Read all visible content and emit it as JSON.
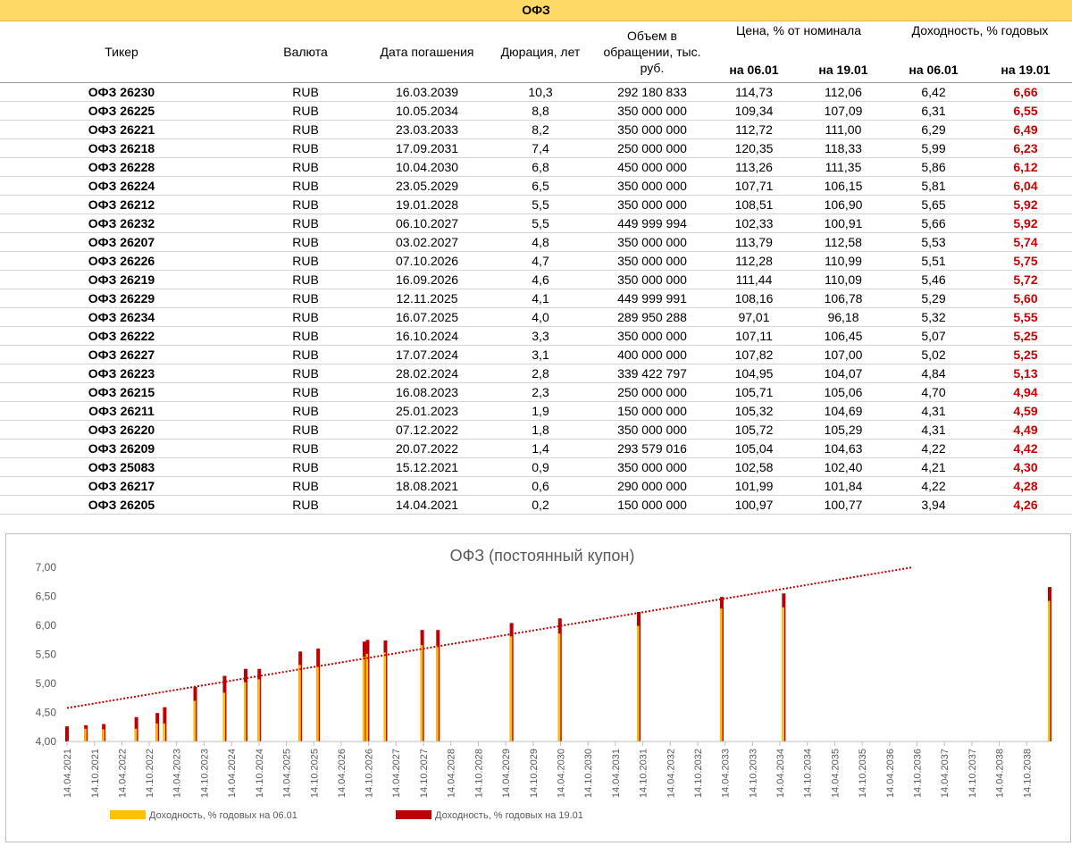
{
  "table": {
    "title": "ОФЗ",
    "headers": {
      "ticker": "Тикер",
      "currency": "Валюта",
      "maturity": "Дата погашения",
      "duration": "Дюрация, лет",
      "volume": "Объем в обращении, тыс. руб.",
      "price_group": "Цена, % от номинала",
      "yield_group": "Доходность, % годовых",
      "date1": "на 06.01",
      "date2": "на 19.01"
    },
    "rows": [
      [
        "ОФЗ 26230",
        "RUB",
        "16.03.2039",
        "10,3",
        "292 180 833",
        "114,73",
        "112,06",
        "6,42",
        "6,66"
      ],
      [
        "ОФЗ 26225",
        "RUB",
        "10.05.2034",
        "8,8",
        "350 000 000",
        "109,34",
        "107,09",
        "6,31",
        "6,55"
      ],
      [
        "ОФЗ 26221",
        "RUB",
        "23.03.2033",
        "8,2",
        "350 000 000",
        "112,72",
        "111,00",
        "6,29",
        "6,49"
      ],
      [
        "ОФЗ 26218",
        "RUB",
        "17.09.2031",
        "7,4",
        "250 000 000",
        "120,35",
        "118,33",
        "5,99",
        "6,23"
      ],
      [
        "ОФЗ 26228",
        "RUB",
        "10.04.2030",
        "6,8",
        "450 000 000",
        "113,26",
        "111,35",
        "5,86",
        "6,12"
      ],
      [
        "ОФЗ 26224",
        "RUB",
        "23.05.2029",
        "6,5",
        "350 000 000",
        "107,71",
        "106,15",
        "5,81",
        "6,04"
      ],
      [
        "ОФЗ 26212",
        "RUB",
        "19.01.2028",
        "5,5",
        "350 000 000",
        "108,51",
        "106,90",
        "5,65",
        "5,92"
      ],
      [
        "ОФЗ 26232",
        "RUB",
        "06.10.2027",
        "5,5",
        "449 999 994",
        "102,33",
        "100,91",
        "5,66",
        "5,92"
      ],
      [
        "ОФЗ 26207",
        "RUB",
        "03.02.2027",
        "4,8",
        "350 000 000",
        "113,79",
        "112,58",
        "5,53",
        "5,74"
      ],
      [
        "ОФЗ 26226",
        "RUB",
        "07.10.2026",
        "4,7",
        "350 000 000",
        "112,28",
        "110,99",
        "5,51",
        "5,75"
      ],
      [
        "ОФЗ 26219",
        "RUB",
        "16.09.2026",
        "4,6",
        "350 000 000",
        "111,44",
        "110,09",
        "5,46",
        "5,72"
      ],
      [
        "ОФЗ 26229",
        "RUB",
        "12.11.2025",
        "4,1",
        "449 999 991",
        "108,16",
        "106,78",
        "5,29",
        "5,60"
      ],
      [
        "ОФЗ 26234",
        "RUB",
        "16.07.2025",
        "4,0",
        "289 950 288",
        "97,01",
        "96,18",
        "5,32",
        "5,55"
      ],
      [
        "ОФЗ 26222",
        "RUB",
        "16.10.2024",
        "3,3",
        "350 000 000",
        "107,11",
        "106,45",
        "5,07",
        "5,25"
      ],
      [
        "ОФЗ 26227",
        "RUB",
        "17.07.2024",
        "3,1",
        "400 000 000",
        "107,82",
        "107,00",
        "5,02",
        "5,25"
      ],
      [
        "ОФЗ 26223",
        "RUB",
        "28.02.2024",
        "2,8",
        "339 422 797",
        "104,95",
        "104,07",
        "4,84",
        "5,13"
      ],
      [
        "ОФЗ 26215",
        "RUB",
        "16.08.2023",
        "2,3",
        "250 000 000",
        "105,71",
        "105,06",
        "4,70",
        "4,94"
      ],
      [
        "ОФЗ 26211",
        "RUB",
        "25.01.2023",
        "1,9",
        "150 000 000",
        "105,32",
        "104,69",
        "4,31",
        "4,59"
      ],
      [
        "ОФЗ 26220",
        "RUB",
        "07.12.2022",
        "1,8",
        "350 000 000",
        "105,72",
        "105,29",
        "4,31",
        "4,49"
      ],
      [
        "ОФЗ 26209",
        "RUB",
        "20.07.2022",
        "1,4",
        "293 579 016",
        "105,04",
        "104,63",
        "4,22",
        "4,42"
      ],
      [
        "ОФЗ 25083",
        "RUB",
        "15.12.2021",
        "0,9",
        "350 000 000",
        "102,58",
        "102,40",
        "4,21",
        "4,30"
      ],
      [
        "ОФЗ 26217",
        "RUB",
        "18.08.2021",
        "0,6",
        "290 000 000",
        "101,99",
        "101,84",
        "4,22",
        "4,28"
      ],
      [
        "ОФЗ 26205",
        "RUB",
        "14.04.2021",
        "0,2",
        "150 000 000",
        "100,97",
        "100,77",
        "3,94",
        "4,26"
      ]
    ]
  },
  "chart_data": {
    "type": "bar",
    "title": "ОФЗ (постоянный купон)",
    "ylim": [
      4.0,
      7.0
    ],
    "yticks": [
      "4,00",
      "4,50",
      "5,00",
      "5,50",
      "6,00",
      "6,50",
      "7,00"
    ],
    "xlim": [
      "2021-04-14",
      "2039-03-16"
    ],
    "xticks": [
      "14.04.2021",
      "14.10.2021",
      "14.04.2022",
      "14.10.2022",
      "14.04.2023",
      "14.10.2023",
      "14.04.2024",
      "14.10.2024",
      "14.04.2025",
      "14.10.2025",
      "14.04.2026",
      "14.10.2026",
      "14.04.2027",
      "14.10.2027",
      "14.04.2028",
      "14.10.2028",
      "14.04.2029",
      "14.10.2029",
      "14.04.2030",
      "14.10.2030",
      "14.04.2031",
      "14.10.2031",
      "14.04.2032",
      "14.10.2032",
      "14.04.2033",
      "14.10.2033",
      "14.04.2034",
      "14.10.2034",
      "14.04.2035",
      "14.10.2035",
      "14.04.2036",
      "14.10.2036",
      "14.04.2037",
      "14.10.2037",
      "14.04.2038",
      "14.10.2038"
    ],
    "x": [
      "2021-04-14",
      "2021-08-18",
      "2021-12-15",
      "2022-07-20",
      "2022-12-07",
      "2023-01-25",
      "2023-08-16",
      "2024-02-28",
      "2024-07-17",
      "2024-10-16",
      "2025-07-16",
      "2025-11-12",
      "2026-09-16",
      "2026-10-07",
      "2027-02-03",
      "2027-10-06",
      "2028-01-19",
      "2029-05-23",
      "2030-04-10",
      "2031-09-17",
      "2033-03-23",
      "2034-05-10",
      "2039-03-16"
    ],
    "series": [
      {
        "name": "Доходность, % годовых на 06.01",
        "color": "#ffc000",
        "values": [
          3.94,
          4.22,
          4.21,
          4.22,
          4.31,
          4.31,
          4.7,
          4.84,
          5.02,
          5.07,
          5.32,
          5.29,
          5.46,
          5.51,
          5.53,
          5.66,
          5.65,
          5.81,
          5.86,
          5.99,
          6.29,
          6.31,
          6.42
        ]
      },
      {
        "name": "Доходность, % годовых на 19.01",
        "color": "#c00000",
        "values": [
          4.26,
          4.28,
          4.3,
          4.42,
          4.49,
          4.59,
          4.94,
          5.13,
          5.25,
          5.25,
          5.55,
          5.6,
          5.72,
          5.75,
          5.74,
          5.92,
          5.92,
          6.04,
          6.12,
          6.23,
          6.49,
          6.55,
          6.66
        ]
      }
    ],
    "trendline": {
      "style": "dotted",
      "color": "#c00000",
      "series": "Доходность, % годовых на 19.01"
    },
    "legend_position": "bottom-left",
    "grid": false
  }
}
